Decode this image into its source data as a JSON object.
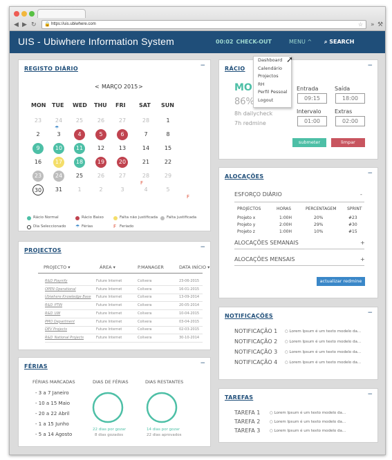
{
  "browser": {
    "url": "https://uis.ubiwhere.com"
  },
  "header": {
    "title": "UIS - Ubiwhere Information System",
    "time": "00:02",
    "checkout": "CHECK-OUT",
    "menu": "MENU ^",
    "search": "SEARCH"
  },
  "menu_items": [
    "Dashboard",
    "Calendário",
    "Projectos",
    "RH",
    "Perfil Pessoal",
    "Logout"
  ],
  "registo": {
    "title": "REGISTO DIÁRIO",
    "month": "MARÇO 2015",
    "prev": "<",
    "next": ">",
    "weekdays": [
      "MON",
      "TUE",
      "WED",
      "THU",
      "FRI",
      "SAT",
      "SUN"
    ],
    "days": [
      [
        "23",
        "24",
        "25",
        "26",
        "27",
        "28",
        "1"
      ],
      [
        "2",
        "3",
        "4",
        "5",
        "6",
        "7",
        "8"
      ],
      [
        "9",
        "10",
        "11",
        "12",
        "13",
        "14",
        "15"
      ],
      [
        "16",
        "17",
        "18",
        "19",
        "20",
        "21",
        "22"
      ],
      [
        "23",
        "24",
        "25",
        "26",
        "27",
        "28",
        "29"
      ],
      [
        "30",
        "31",
        "1",
        "2",
        "3",
        "4",
        "5"
      ]
    ],
    "legend": [
      "Rácio Normal",
      "Rácio Baixo",
      "Falta não justificada",
      "Falta justificada",
      "Dia Seleccionado",
      "Férias",
      "Feriado"
    ]
  },
  "colors": {
    "teal": "#4dbfa6",
    "red": "#c0434f",
    "yellow": "#f4de6a",
    "gray": "#bdbdbd",
    "blue": "#1f4e79",
    "accent": "#3a87c8"
  },
  "racio": {
    "title": "RÁCIO",
    "big": "MON",
    "pct": "86%",
    "l1": "8h dailycheck",
    "l2": "7h redmine",
    "entrada": "Entrada",
    "entrada_v": "09:15",
    "saida": "Saída",
    "saida_v": "18:00",
    "intervalo": "Intervalo",
    "intervalo_v": "01:00",
    "extras": "Extras",
    "extras_v": "02:00",
    "submit": "submeter",
    "clear": "limpar"
  },
  "alocacoes": {
    "title": "ALOCAÇÕES",
    "esforco": "ESFORÇO DIÁRIO",
    "esforco_sign": "-",
    "headers": [
      "PROJECTOS",
      "HORAS",
      "PERCENTAGEM",
      "SPRINT"
    ],
    "rows": [
      [
        "Projeto x",
        "1:00H",
        "20%",
        "#23"
      ],
      [
        "Projeto y",
        "2:00H",
        "29%",
        "#30"
      ],
      [
        "Projeto z",
        "1:00H",
        "10%",
        "#15"
      ]
    ],
    "semanais": "ALOCAÇÕES SEMANAIS",
    "mensais": "ALOCAÇÕES MENSAIS",
    "plus": "+",
    "update": "actualizar redmine"
  },
  "projectos": {
    "title": "PROJECTOS",
    "headers": [
      "PROJECTO ▾",
      "ÁREA ▾",
      "P.MANAGER",
      "DATA INÍCIO ▾"
    ],
    "rows": [
      [
        "R&D Playnify",
        "Future Internet",
        "Colivera",
        "23-06-2015"
      ],
      [
        "OPEN Operational",
        "Future Internet",
        "Colivera",
        "16-01-2015"
      ],
      [
        "Ubiwhere Knowledge Base",
        "Future Internet",
        "Colivera",
        "13-09-2014"
      ],
      [
        "R&D_PTIN",
        "Future Internet",
        "Colivera",
        "20-05-2014"
      ],
      [
        "R&D_UW",
        "Future Internet",
        "Colivera",
        "10-04-2015"
      ],
      [
        "PMO Department",
        "Future Internet",
        "Colivera",
        "03-04-2015"
      ],
      [
        "DEV Projects",
        "Future Internet",
        "Colivera",
        "02-03-2015"
      ],
      [
        "R&D_National Projects",
        "Future Internet",
        "Colivera",
        "30-10-2014"
      ]
    ]
  },
  "ferias": {
    "title": "FÉRIAS",
    "marcadas": "FÉRIAS MARCADAS",
    "list": [
      "- 3 a 7 Janeiro",
      "- 10 a 15 Maio",
      "- 20 a 22 Abril",
      "- 1 a 15 Junho",
      "- 5 a 14 Agosto"
    ],
    "dias": "DIAS DE FÉRIAS",
    "restantes": "DIAS RESTANTES",
    "d1a": "22 dias por gozar",
    "d1b": "8 dias gozados",
    "d2a": "14 dias por gozar",
    "d2b": "22 dias aprovados"
  },
  "notificacoes": {
    "title": "NOTIFICAÇÕES",
    "items": [
      {
        "label": "NOTIFICAÇÃO 1",
        "text": "○ Lorem Ipsum é um texto modelo da..."
      },
      {
        "label": "NOTIFICAÇÃO 2",
        "text": "○ Lorem Ipsum é um texto modelo da..."
      },
      {
        "label": "NOTIFICAÇÃO 3",
        "text": "○ Lorem Ipsum é um texto modelo da..."
      },
      {
        "label": "NOTIFICAÇÃO 4",
        "text": "○ Lorem Ipsum é um texto modelo da..."
      }
    ]
  },
  "tarefas": {
    "title": "TAREFAS",
    "items": [
      {
        "label": "TAREFA 1",
        "text": "○ Lorem Ipsum é um texto modelo da..."
      },
      {
        "label": "TAREFA 2",
        "text": "○ Lorem Ipsum é um texto modelo da..."
      },
      {
        "label": "TAREFA 3",
        "text": "○ Lorem Ipsum é um texto modelo da..."
      }
    ]
  },
  "minimize": "−"
}
